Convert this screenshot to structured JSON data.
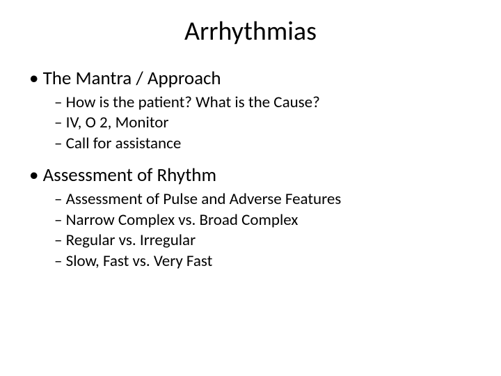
{
  "title": "Arrhythmias",
  "sections": [
    {
      "heading": "The Mantra / Approach",
      "items": [
        "How is the patient? What is the Cause?",
        "IV, O 2, Monitor",
        "Call for assistance"
      ]
    },
    {
      "heading": "Assessment of Rhythm",
      "items": [
        "Assessment of Pulse and Adverse Features",
        "Narrow Complex vs. Broad Complex",
        "Regular vs. Irregular",
        "Slow, Fast vs. Very Fast"
      ]
    }
  ],
  "colors": {
    "background": "#ffffff",
    "text": "#000000"
  },
  "typography": {
    "title_fontsize": 38,
    "level1_fontsize": 27,
    "level2_fontsize": 23,
    "font_family": "Calibri"
  }
}
